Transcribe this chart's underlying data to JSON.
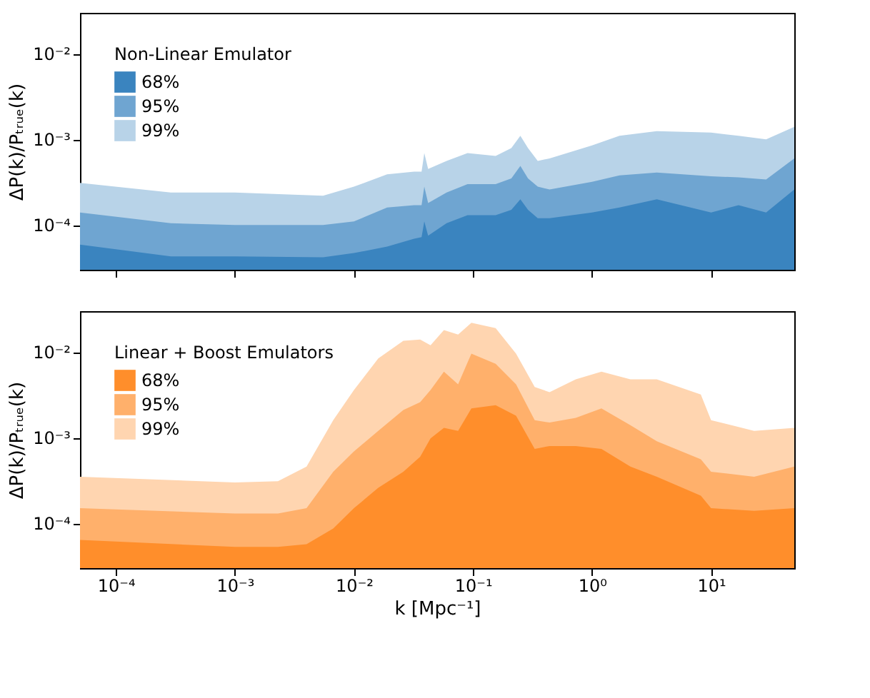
{
  "chart_data": [
    {
      "type": "area",
      "ylabel": "ΔP(k)/Pₜᵣᵤₑ(k)",
      "legend_title": "Non-Linear Emulator",
      "legend": "top left",
      "grid": false,
      "log": "xy",
      "tick_labels": "y",
      "x": [
        5e-05,
        0.00029,
        0.001,
        0.0055,
        0.01,
        0.019,
        0.032,
        0.037,
        0.039,
        0.042,
        0.06,
        0.09,
        0.155,
        0.21,
        0.25,
        0.29,
        0.35,
        0.44,
        1,
        1.7,
        3.5,
        10,
        17,
        29,
        50
      ],
      "xlim": [
        5e-05,
        50
      ],
      "xticks": [
        {
          "value": 0.0001,
          "label": null
        },
        {
          "value": 0.001,
          "label": null
        },
        {
          "value": 0.01,
          "label": null
        },
        {
          "value": 0.1,
          "label": null
        },
        {
          "value": 1,
          "label": null
        },
        {
          "value": 10,
          "label": null
        }
      ],
      "ylim": [
        3e-05,
        0.03
      ],
      "yticks": [
        {
          "value": 0.0001,
          "label": "10⁻⁴"
        },
        {
          "value": 0.001,
          "label": "10⁻³"
        },
        {
          "value": 0.01,
          "label": "10⁻²"
        }
      ],
      "series": [
        {
          "name": "68%",
          "color": "#3a84bf",
          "values": [
            5.9e-05,
            4.3e-05,
            4.3e-05,
            4.2e-05,
            4.7e-05,
            5.6e-05,
            6.9e-05,
            7.2e-05,
            0.00011,
            7.5e-05,
            0.000105,
            0.00013,
            0.00013,
            0.00015,
            0.0002,
            0.00015,
            0.00012,
            0.00012,
            0.00014,
            0.00016,
            0.0002,
            0.00014,
            0.00017,
            0.00014,
            0.00026
          ]
        },
        {
          "name": "95%",
          "color": "#6fa5d1",
          "values": [
            0.00014,
            0.000105,
            0.0001,
            0.0001,
            0.00011,
            0.00016,
            0.00017,
            0.00017,
            0.00028,
            0.00018,
            0.00024,
            0.0003,
            0.0003,
            0.00035,
            0.00049,
            0.00035,
            0.00028,
            0.00026,
            0.00032,
            0.00038,
            0.00041,
            0.00037,
            0.00036,
            0.00034,
            0.0006
          ]
        },
        {
          "name": "99%",
          "color": "#b8d3e8",
          "values": [
            0.00031,
            0.00024,
            0.00024,
            0.00022,
            0.00028,
            0.00039,
            0.00042,
            0.00042,
            0.00069,
            0.00045,
            0.00056,
            0.00069,
            0.00064,
            0.00079,
            0.0011,
            0.00079,
            0.00056,
            0.0006,
            0.00085,
            0.0011,
            0.00125,
            0.0012,
            0.0011,
            0.001,
            0.0014
          ]
        }
      ]
    },
    {
      "type": "area",
      "xlabel": "k [Mpc⁻¹]",
      "ylabel": "ΔP(k)/Pₜᵣᵤₑ(k)",
      "legend_title": "Linear + Boost Emulators",
      "legend": "top left",
      "grid": false,
      "log": "xy",
      "x": [
        5e-05,
        0.001,
        0.0023,
        0.004,
        0.0067,
        0.01,
        0.016,
        0.026,
        0.036,
        0.044,
        0.057,
        0.075,
        0.097,
        0.155,
        0.23,
        0.33,
        0.44,
        0.73,
        1.2,
        2.1,
        3.5,
        8.2,
        10,
        23,
        50
      ],
      "xlim": [
        5e-05,
        50
      ],
      "xticks": [
        {
          "value": 0.0001,
          "label": "10⁻⁴"
        },
        {
          "value": 0.001,
          "label": "10⁻³"
        },
        {
          "value": 0.01,
          "label": "10⁻²"
        },
        {
          "value": 0.1,
          "label": "10⁻¹"
        },
        {
          "value": 1,
          "label": "10⁰"
        },
        {
          "value": 10,
          "label": "10¹"
        }
      ],
      "ylim": [
        3e-05,
        0.03
      ],
      "yticks": [
        {
          "value": 0.0001,
          "label": "10⁻⁴"
        },
        {
          "value": 0.001,
          "label": "10⁻³"
        },
        {
          "value": 0.01,
          "label": "10⁻²"
        }
      ],
      "series": [
        {
          "name": "68%",
          "color": "#ff8e2b",
          "values": [
            6.4e-05,
            5.3e-05,
            5.3e-05,
            5.7e-05,
            8.7e-05,
            0.00015,
            0.00026,
            0.0004,
            0.0006,
            0.00098,
            0.0013,
            0.0012,
            0.0022,
            0.0024,
            0.0018,
            0.00074,
            0.0008,
            0.0008,
            0.00074,
            0.00046,
            0.00035,
            0.00021,
            0.00015,
            0.00014,
            0.00015
          ]
        },
        {
          "name": "95%",
          "color": "#ffb06b",
          "values": [
            0.00015,
            0.00013,
            0.00013,
            0.00015,
            0.0004,
            0.00069,
            0.0012,
            0.0021,
            0.0026,
            0.0036,
            0.0059,
            0.0042,
            0.0096,
            0.0073,
            0.0042,
            0.0016,
            0.0015,
            0.0017,
            0.0022,
            0.0014,
            0.00091,
            0.00056,
            0.0004,
            0.00035,
            0.00046
          ]
        },
        {
          "name": "99%",
          "color": "#ffd5b0",
          "values": [
            0.00035,
            0.0003,
            0.00031,
            0.00046,
            0.0016,
            0.0036,
            0.0084,
            0.0135,
            0.014,
            0.012,
            0.018,
            0.016,
            0.022,
            0.019,
            0.0096,
            0.0039,
            0.0034,
            0.0048,
            0.0059,
            0.0048,
            0.0048,
            0.0032,
            0.0016,
            0.0012,
            0.0013
          ]
        }
      ]
    }
  ]
}
